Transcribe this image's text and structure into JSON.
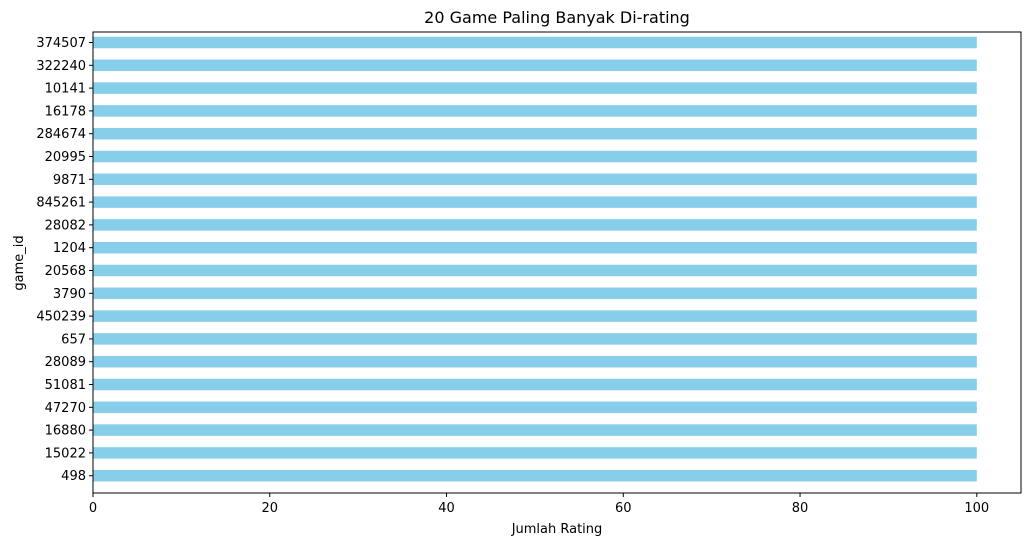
{
  "chart_data": {
    "type": "bar",
    "orientation": "horizontal",
    "title": "20 Game Paling Banyak Di-rating",
    "xlabel": "Jumlah Rating",
    "ylabel": "game_id",
    "categories": [
      "374507",
      "322240",
      "10141",
      "16178",
      "284674",
      "20995",
      "9871",
      "845261",
      "28082",
      "1204",
      "20568",
      "3790",
      "450239",
      "657",
      "28089",
      "51081",
      "47270",
      "16880",
      "15022",
      "498"
    ],
    "values": [
      100,
      100,
      100,
      100,
      100,
      100,
      100,
      100,
      100,
      100,
      100,
      100,
      100,
      100,
      100,
      100,
      100,
      100,
      100,
      100
    ],
    "xlim": [
      0,
      105
    ],
    "xticks": [
      0,
      20,
      40,
      60,
      80,
      100
    ],
    "grid": false,
    "legend": "none",
    "bar_color": "#87ceeb"
  }
}
